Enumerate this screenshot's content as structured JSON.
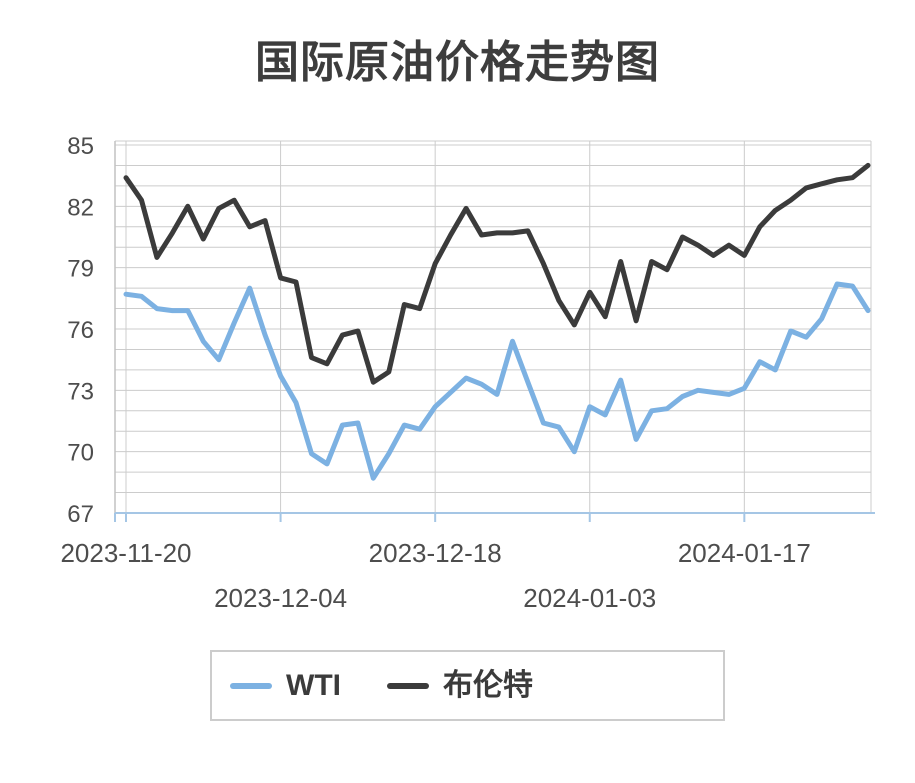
{
  "title": "国际原油价格走势图",
  "colors": {
    "wti": "#7cb1e2",
    "brent": "#3b3b3b",
    "grid": "#cccccc",
    "y_axis_line": "#c2c2c2",
    "x_axis_line": "#a5c6e5",
    "tick_label": "#4d4d4d",
    "title_text": "#3d3d3d",
    "background": "#ffffff"
  },
  "legend": {
    "items": [
      {
        "label": "WTI",
        "color": "#7cb1e2"
      },
      {
        "label": "布伦特",
        "color": "#3b3b3b"
      }
    ]
  },
  "chart_data": {
    "type": "line",
    "title": "国际原油价格走势图",
    "xlabel": "",
    "ylabel": "",
    "ylim": [
      67,
      85
    ],
    "y_label_step": 3,
    "y_minor_step": 1,
    "grid": true,
    "legend_position": "bottom",
    "n_points": 49,
    "x_ticks": [
      {
        "label": "2023-11-20",
        "index": 0,
        "row": 1
      },
      {
        "label": "2023-12-04",
        "index": 10,
        "row": 2
      },
      {
        "label": "2023-12-18",
        "index": 20,
        "row": 1
      },
      {
        "label": "2024-01-03",
        "index": 30,
        "row": 2
      },
      {
        "label": "2024-01-17",
        "index": 40,
        "row": 1
      }
    ],
    "series": [
      {
        "name": "布伦特",
        "color": "#3b3b3b",
        "values": [
          83.4,
          82.3,
          79.5,
          80.7,
          82.0,
          80.4,
          81.9,
          82.3,
          81.0,
          81.3,
          78.5,
          78.3,
          74.6,
          74.3,
          75.7,
          75.9,
          73.4,
          73.9,
          77.2,
          77.0,
          79.2,
          80.6,
          81.9,
          80.6,
          80.7,
          80.7,
          80.8,
          79.2,
          77.4,
          76.2,
          77.8,
          76.6,
          79.3,
          76.4,
          79.3,
          78.9,
          80.5,
          80.1,
          79.6,
          80.1,
          79.6,
          81.0,
          81.8,
          82.3,
          82.9,
          83.1,
          83.3,
          83.4,
          84.0
        ]
      },
      {
        "name": "WTI",
        "color": "#7cb1e2",
        "values": [
          77.7,
          77.6,
          77.0,
          76.9,
          76.9,
          75.4,
          74.5,
          76.3,
          78.0,
          75.7,
          73.7,
          72.4,
          69.9,
          69.4,
          71.3,
          71.4,
          68.7,
          69.9,
          71.3,
          71.1,
          72.2,
          72.9,
          73.6,
          73.3,
          72.8,
          75.4,
          73.4,
          71.4,
          71.2,
          70.0,
          72.2,
          71.8,
          73.5,
          70.6,
          72.0,
          72.1,
          72.7,
          73.0,
          72.9,
          72.8,
          73.1,
          74.4,
          74.0,
          75.9,
          75.6,
          76.5,
          78.2,
          78.1,
          76.9
        ]
      }
    ]
  }
}
